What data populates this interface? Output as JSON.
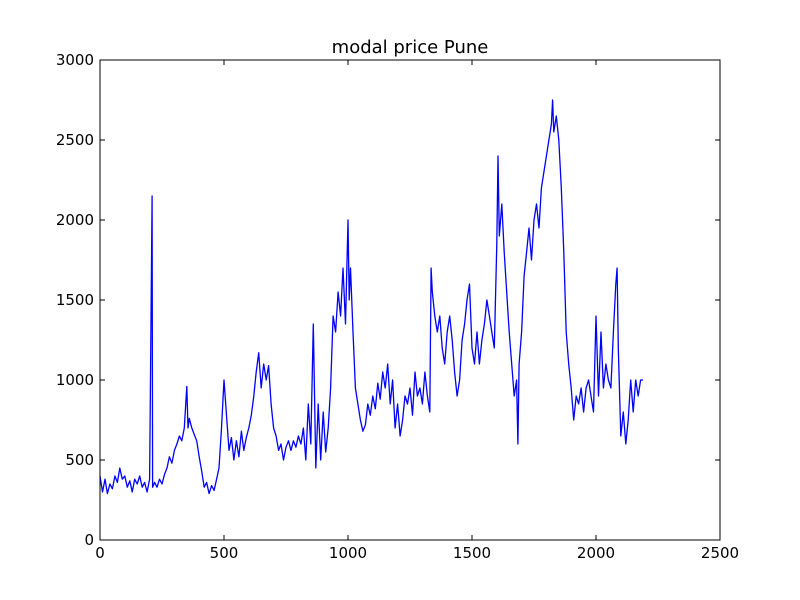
{
  "chart_data": {
    "type": "line",
    "title": "modal price Pune",
    "xlabel": "",
    "ylabel": "",
    "xlim": [
      0,
      2500
    ],
    "ylim": [
      0,
      3000
    ],
    "xticks": [
      0,
      500,
      1000,
      1500,
      2000,
      2500
    ],
    "yticks": [
      0,
      500,
      1000,
      1500,
      2000,
      2500,
      3000
    ],
    "xtick_labels": [
      "0",
      "500",
      "1000",
      "1500",
      "2000",
      "2500"
    ],
    "ytick_labels": [
      "0",
      "500",
      "1000",
      "1500",
      "2000",
      "2500",
      "3000"
    ],
    "grid": false,
    "line_color": "#0000ff",
    "series": [
      {
        "name": "modal price",
        "approx_points": [
          [
            0,
            400
          ],
          [
            10,
            300
          ],
          [
            20,
            380
          ],
          [
            30,
            290
          ],
          [
            40,
            350
          ],
          [
            50,
            320
          ],
          [
            60,
            400
          ],
          [
            70,
            360
          ],
          [
            80,
            450
          ],
          [
            90,
            380
          ],
          [
            100,
            400
          ],
          [
            110,
            330
          ],
          [
            120,
            370
          ],
          [
            130,
            300
          ],
          [
            140,
            380
          ],
          [
            150,
            350
          ],
          [
            160,
            400
          ],
          [
            170,
            330
          ],
          [
            180,
            360
          ],
          [
            190,
            300
          ],
          [
            200,
            380
          ],
          [
            210,
            2150
          ],
          [
            212,
            330
          ],
          [
            220,
            360
          ],
          [
            230,
            330
          ],
          [
            240,
            380
          ],
          [
            250,
            350
          ],
          [
            260,
            410
          ],
          [
            270,
            450
          ],
          [
            280,
            520
          ],
          [
            290,
            480
          ],
          [
            300,
            560
          ],
          [
            310,
            600
          ],
          [
            320,
            650
          ],
          [
            330,
            620
          ],
          [
            340,
            700
          ],
          [
            350,
            960
          ],
          [
            355,
            700
          ],
          [
            360,
            760
          ],
          [
            370,
            700
          ],
          [
            380,
            660
          ],
          [
            390,
            620
          ],
          [
            400,
            520
          ],
          [
            410,
            430
          ],
          [
            420,
            330
          ],
          [
            430,
            360
          ],
          [
            440,
            290
          ],
          [
            450,
            340
          ],
          [
            460,
            310
          ],
          [
            470,
            380
          ],
          [
            480,
            450
          ],
          [
            490,
            700
          ],
          [
            500,
            1000
          ],
          [
            510,
            780
          ],
          [
            520,
            560
          ],
          [
            530,
            640
          ],
          [
            540,
            500
          ],
          [
            550,
            620
          ],
          [
            560,
            520
          ],
          [
            570,
            680
          ],
          [
            580,
            560
          ],
          [
            590,
            640
          ],
          [
            600,
            700
          ],
          [
            610,
            780
          ],
          [
            620,
            900
          ],
          [
            630,
            1050
          ],
          [
            640,
            1170
          ],
          [
            650,
            950
          ],
          [
            660,
            1100
          ],
          [
            670,
            1000
          ],
          [
            680,
            1090
          ],
          [
            690,
            850
          ],
          [
            700,
            700
          ],
          [
            710,
            650
          ],
          [
            720,
            560
          ],
          [
            730,
            600
          ],
          [
            740,
            500
          ],
          [
            750,
            580
          ],
          [
            760,
            620
          ],
          [
            770,
            560
          ],
          [
            780,
            620
          ],
          [
            790,
            580
          ],
          [
            800,
            650
          ],
          [
            810,
            600
          ],
          [
            820,
            700
          ],
          [
            830,
            500
          ],
          [
            840,
            850
          ],
          [
            850,
            600
          ],
          [
            860,
            1350
          ],
          [
            870,
            450
          ],
          [
            880,
            850
          ],
          [
            890,
            500
          ],
          [
            900,
            800
          ],
          [
            910,
            550
          ],
          [
            920,
            700
          ],
          [
            930,
            950
          ],
          [
            940,
            1400
          ],
          [
            950,
            1300
          ],
          [
            960,
            1550
          ],
          [
            970,
            1400
          ],
          [
            980,
            1700
          ],
          [
            990,
            1350
          ],
          [
            1000,
            2000
          ],
          [
            1005,
            1500
          ],
          [
            1010,
            1700
          ],
          [
            1020,
            1300
          ],
          [
            1030,
            950
          ],
          [
            1040,
            850
          ],
          [
            1050,
            750
          ],
          [
            1060,
            680
          ],
          [
            1070,
            720
          ],
          [
            1080,
            850
          ],
          [
            1090,
            780
          ],
          [
            1100,
            900
          ],
          [
            1110,
            820
          ],
          [
            1120,
            980
          ],
          [
            1130,
            880
          ],
          [
            1140,
            1050
          ],
          [
            1150,
            950
          ],
          [
            1160,
            1100
          ],
          [
            1170,
            850
          ],
          [
            1180,
            1000
          ],
          [
            1190,
            700
          ],
          [
            1200,
            850
          ],
          [
            1210,
            650
          ],
          [
            1220,
            750
          ],
          [
            1230,
            900
          ],
          [
            1240,
            850
          ],
          [
            1250,
            950
          ],
          [
            1260,
            780
          ],
          [
            1270,
            1050
          ],
          [
            1280,
            900
          ],
          [
            1290,
            950
          ],
          [
            1300,
            850
          ],
          [
            1310,
            1050
          ],
          [
            1320,
            900
          ],
          [
            1330,
            800
          ],
          [
            1335,
            1700
          ],
          [
            1340,
            1550
          ],
          [
            1350,
            1400
          ],
          [
            1360,
            1300
          ],
          [
            1370,
            1400
          ],
          [
            1380,
            1200
          ],
          [
            1390,
            1100
          ],
          [
            1400,
            1300
          ],
          [
            1410,
            1400
          ],
          [
            1420,
            1250
          ],
          [
            1430,
            1050
          ],
          [
            1440,
            900
          ],
          [
            1450,
            1000
          ],
          [
            1460,
            1250
          ],
          [
            1470,
            1350
          ],
          [
            1480,
            1500
          ],
          [
            1490,
            1600
          ],
          [
            1500,
            1200
          ],
          [
            1510,
            1100
          ],
          [
            1520,
            1300
          ],
          [
            1530,
            1100
          ],
          [
            1540,
            1250
          ],
          [
            1550,
            1350
          ],
          [
            1560,
            1500
          ],
          [
            1570,
            1400
          ],
          [
            1580,
            1300
          ],
          [
            1590,
            1200
          ],
          [
            1600,
            1850
          ],
          [
            1605,
            2400
          ],
          [
            1610,
            1900
          ],
          [
            1620,
            2100
          ],
          [
            1630,
            1800
          ],
          [
            1640,
            1550
          ],
          [
            1650,
            1300
          ],
          [
            1660,
            1100
          ],
          [
            1670,
            900
          ],
          [
            1680,
            1000
          ],
          [
            1685,
            600
          ],
          [
            1690,
            1100
          ],
          [
            1700,
            1300
          ],
          [
            1710,
            1650
          ],
          [
            1720,
            1800
          ],
          [
            1730,
            1950
          ],
          [
            1740,
            1750
          ],
          [
            1750,
            2000
          ],
          [
            1760,
            2100
          ],
          [
            1770,
            1950
          ],
          [
            1780,
            2200
          ],
          [
            1790,
            2300
          ],
          [
            1800,
            2400
          ],
          [
            1810,
            2500
          ],
          [
            1820,
            2600
          ],
          [
            1825,
            2750
          ],
          [
            1830,
            2550
          ],
          [
            1840,
            2650
          ],
          [
            1850,
            2500
          ],
          [
            1860,
            2200
          ],
          [
            1870,
            1800
          ],
          [
            1880,
            1300
          ],
          [
            1890,
            1100
          ],
          [
            1900,
            950
          ],
          [
            1910,
            750
          ],
          [
            1920,
            900
          ],
          [
            1930,
            850
          ],
          [
            1940,
            950
          ],
          [
            1950,
            800
          ],
          [
            1960,
            950
          ],
          [
            1970,
            1000
          ],
          [
            1980,
            900
          ],
          [
            1990,
            800
          ],
          [
            2000,
            1400
          ],
          [
            2010,
            900
          ],
          [
            2020,
            1300
          ],
          [
            2030,
            950
          ],
          [
            2040,
            1100
          ],
          [
            2050,
            1000
          ],
          [
            2060,
            950
          ],
          [
            2070,
            1300
          ],
          [
            2080,
            1600
          ],
          [
            2085,
            1700
          ],
          [
            2090,
            1200
          ],
          [
            2100,
            650
          ],
          [
            2110,
            800
          ],
          [
            2120,
            600
          ],
          [
            2130,
            750
          ],
          [
            2140,
            1000
          ],
          [
            2150,
            800
          ],
          [
            2160,
            1000
          ],
          [
            2170,
            900
          ],
          [
            2180,
            1000
          ],
          [
            2190,
            1000
          ]
        ]
      }
    ]
  }
}
